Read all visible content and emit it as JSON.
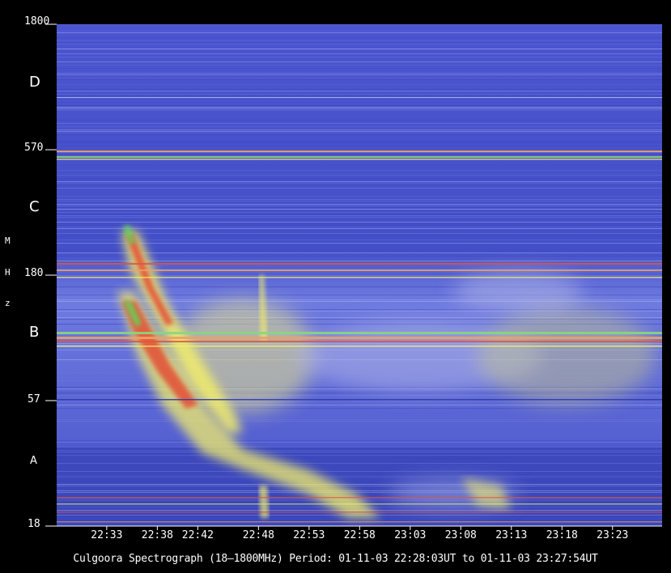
{
  "chart_data": {
    "type": "heatmap",
    "title": "",
    "caption": "Culgoora Spectrograph (18—1800MHz) Period: 01-11-03 22:28:03UT to 01-11-03 23:27:54UT",
    "xlabel": "",
    "ylabel": [
      "M",
      "H",
      "z"
    ],
    "y_scale": "log",
    "ylim": [
      18,
      1800
    ],
    "y_ticks": [
      "1800",
      "570",
      "180",
      "57",
      "18"
    ],
    "band_labels": [
      "D",
      "C",
      "B",
      "A"
    ],
    "x_ticks": [
      "22:33",
      "22:38",
      "22:42",
      "22:48",
      "22:53",
      "22:58",
      "23:03",
      "23:08",
      "23:13",
      "23:18",
      "23:23"
    ],
    "xlim": [
      "22:28:03",
      "23:27:54"
    ],
    "colors": {
      "background": "#4a5ad2",
      "low": "#3b48c8",
      "mid": "#8f9ae6",
      "high": "#f3ef6a",
      "peak": "#e25a3c",
      "max": "#5fd75a"
    },
    "bursts": [
      {
        "name": "type-II-fundamental",
        "start": "22:34",
        "end": "23:10",
        "f_start_mhz": 280,
        "f_end_mhz": 20
      },
      {
        "name": "type-II-harmonic",
        "start": "22:35",
        "end": "22:44",
        "f_start_mhz": 230,
        "f_end_mhz": 35
      }
    ]
  }
}
